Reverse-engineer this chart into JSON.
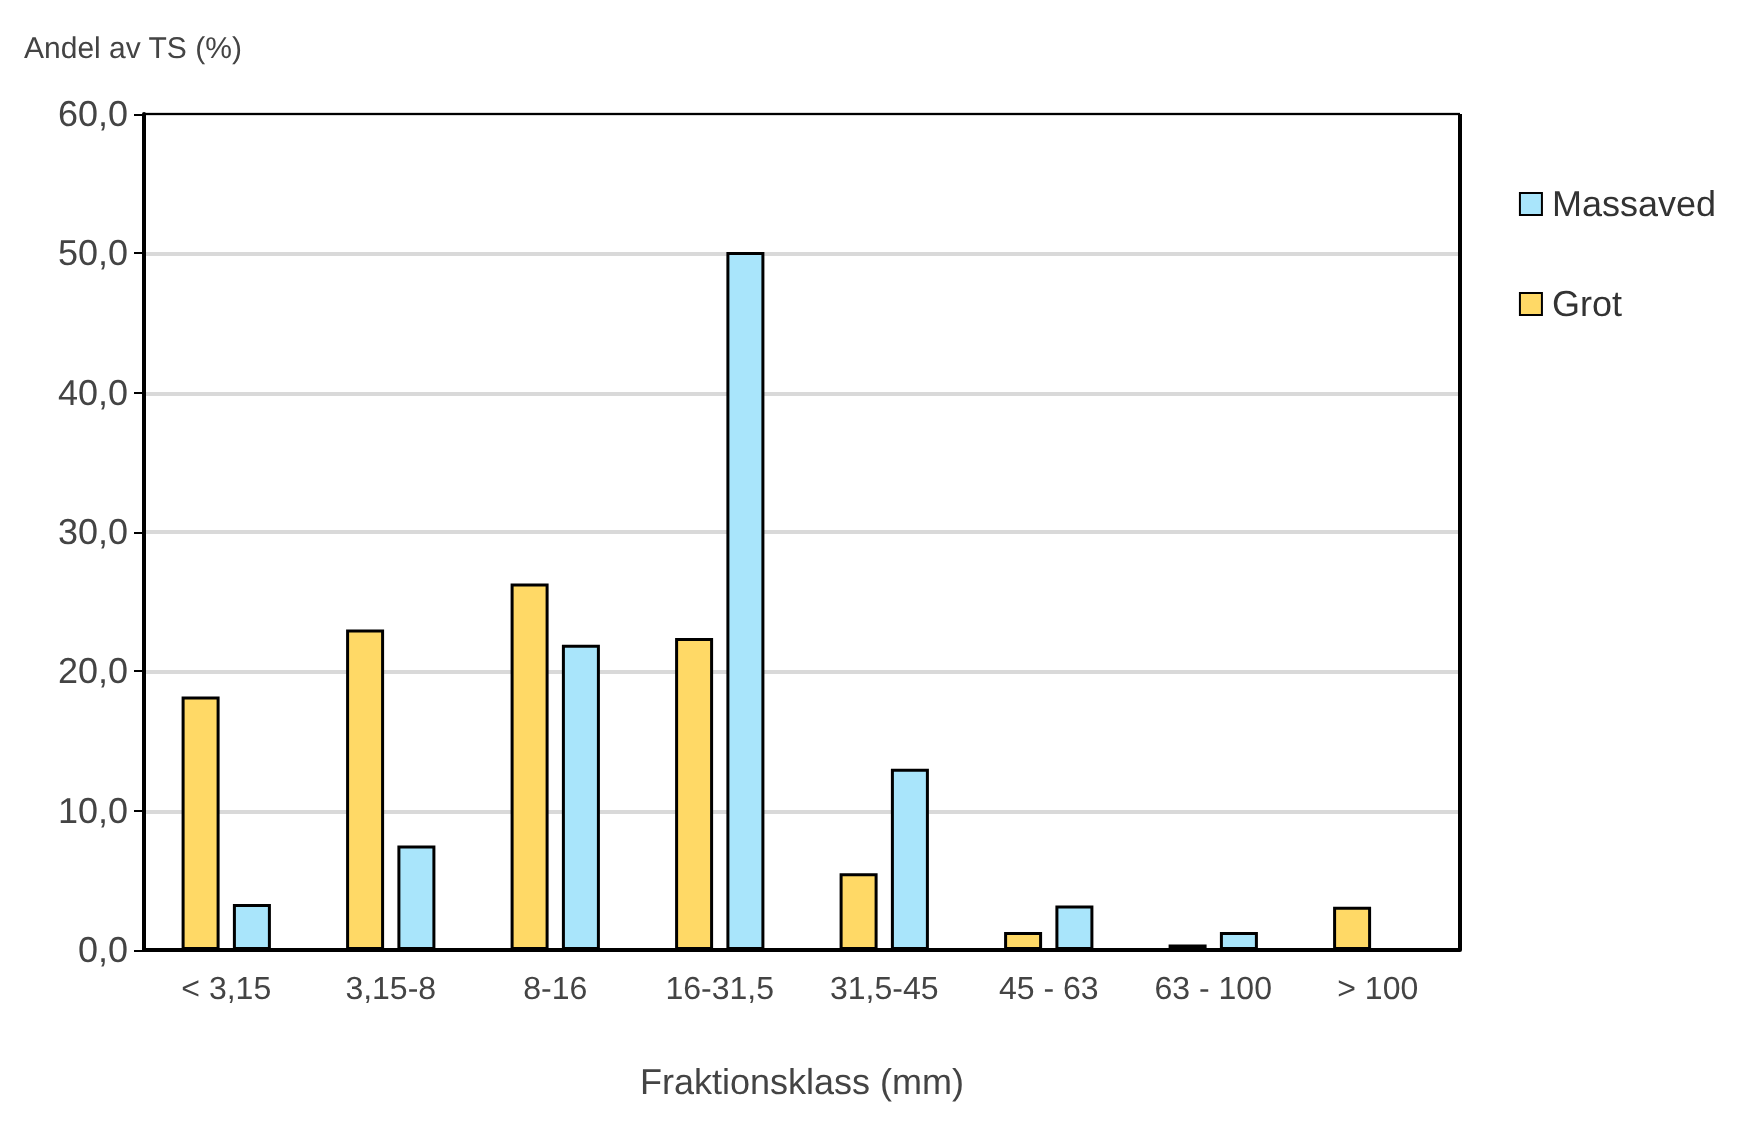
{
  "chart_data": {
    "type": "bar",
    "ylabel": "Andel av TS (%)",
    "xlabel": "Fraktionsklass (mm)",
    "categories": [
      "< 3,15",
      "3,15-8",
      "8-16",
      "16-31,5",
      "31,5-45",
      "45 - 63",
      "63 - 100",
      "> 100"
    ],
    "series": [
      {
        "name": "Grot",
        "color": "#ffd966",
        "values": [
          18.2,
          23.0,
          26.3,
          22.4,
          5.5,
          1.3,
          0.4,
          3.1
        ]
      },
      {
        "name": "Massaved",
        "color": "#a9e5fb",
        "values": [
          3.3,
          7.5,
          21.9,
          50.1,
          13.0,
          3.2,
          1.3,
          null
        ]
      }
    ],
    "ylim": [
      0,
      60
    ],
    "yticks": [
      {
        "value": 0,
        "label": "0,0"
      },
      {
        "value": 10,
        "label": "10,0"
      },
      {
        "value": 20,
        "label": "20,0"
      },
      {
        "value": 30,
        "label": "30,0"
      },
      {
        "value": 40,
        "label": "40,0"
      },
      {
        "value": 50,
        "label": "50,0"
      },
      {
        "value": 60,
        "label": "60,0"
      }
    ],
    "grid": "y",
    "legend": "right"
  }
}
